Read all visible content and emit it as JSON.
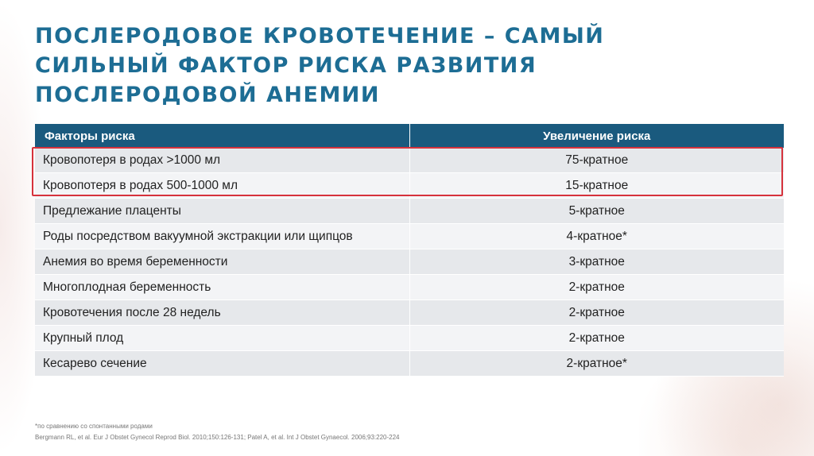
{
  "title": {
    "line1": "ПОСЛЕРОДОВОЕ КРОВОТЕЧЕНИЕ – САМЫЙ",
    "line2": "СИЛЬНЫЙ ФАКТОР РИСКА РАЗВИТИЯ",
    "line3": "ПОСЛЕРОДОВОЙ АНЕМИИ"
  },
  "table": {
    "headers": [
      "Факторы риска",
      "Увеличение риска"
    ],
    "rows": [
      {
        "factor": "Кровопотеря в родах >1000 мл",
        "risk": "75-кратное"
      },
      {
        "factor": "Кровопотеря в родах 500-1000 мл",
        "risk": "15-кратное"
      },
      {
        "factor": "Предлежание плаценты",
        "risk": "5-кратное"
      },
      {
        "factor": "Роды посредством вакуумной экстракции или щипцов",
        "risk": "4-кратное*"
      },
      {
        "factor": "Анемия во время беременности",
        "risk": "3-кратное"
      },
      {
        "factor": "Многоплодная беременность",
        "risk": "2-кратное"
      },
      {
        "factor": "Кровотечения после 28 недель",
        "risk": "2-кратное"
      },
      {
        "factor": "Крупный плод",
        "risk": "2-кратное"
      },
      {
        "factor": "Кесарево сечение",
        "risk": "2-кратное*"
      }
    ]
  },
  "highlight_color": "#d6323c",
  "header_color": "#1a5a7e",
  "title_color": "#1d6d94",
  "footnote": {
    "note": "*по сравнению со спонтанными родами",
    "refs": "Bergmann RL, et al. Eur J Obstet Gynecol Reprod Biol. 2010;150:126-131; Patel A, et al. Int J Obstet Gynaecol. 2006;93:220-224"
  }
}
